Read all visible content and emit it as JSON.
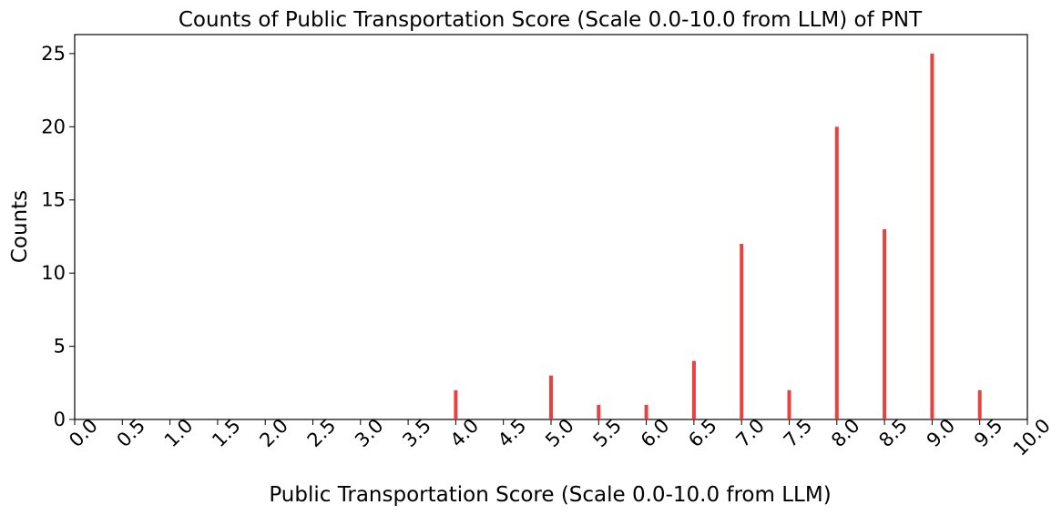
{
  "chart_data": {
    "type": "bar",
    "title": "Counts of Public Transportation Score (Scale 0.0-10.0 from LLM) of PNT",
    "xlabel": "Public Transportation Score (Scale 0.0-10.0 from LLM)",
    "ylabel": "Counts",
    "x_ticks": [
      "0.0",
      "0.5",
      "1.0",
      "1.5",
      "2.0",
      "2.5",
      "3.0",
      "3.5",
      "4.0",
      "4.5",
      "5.0",
      "5.5",
      "6.0",
      "6.5",
      "7.0",
      "7.5",
      "8.0",
      "8.5",
      "9.0",
      "9.5",
      "10.0"
    ],
    "y_ticks": [
      "0",
      "5",
      "10",
      "15",
      "20",
      "25"
    ],
    "xlim": [
      0,
      10
    ],
    "ylim": [
      0,
      26.3
    ],
    "x": [
      4.0,
      5.0,
      5.5,
      6.0,
      6.5,
      7.0,
      7.5,
      8.0,
      8.5,
      9.0,
      9.5
    ],
    "values": [
      2,
      3,
      1,
      1,
      4,
      12,
      2,
      20,
      13,
      25,
      2
    ],
    "bar_color": "#e8413f",
    "grid": false,
    "legend": "none"
  }
}
